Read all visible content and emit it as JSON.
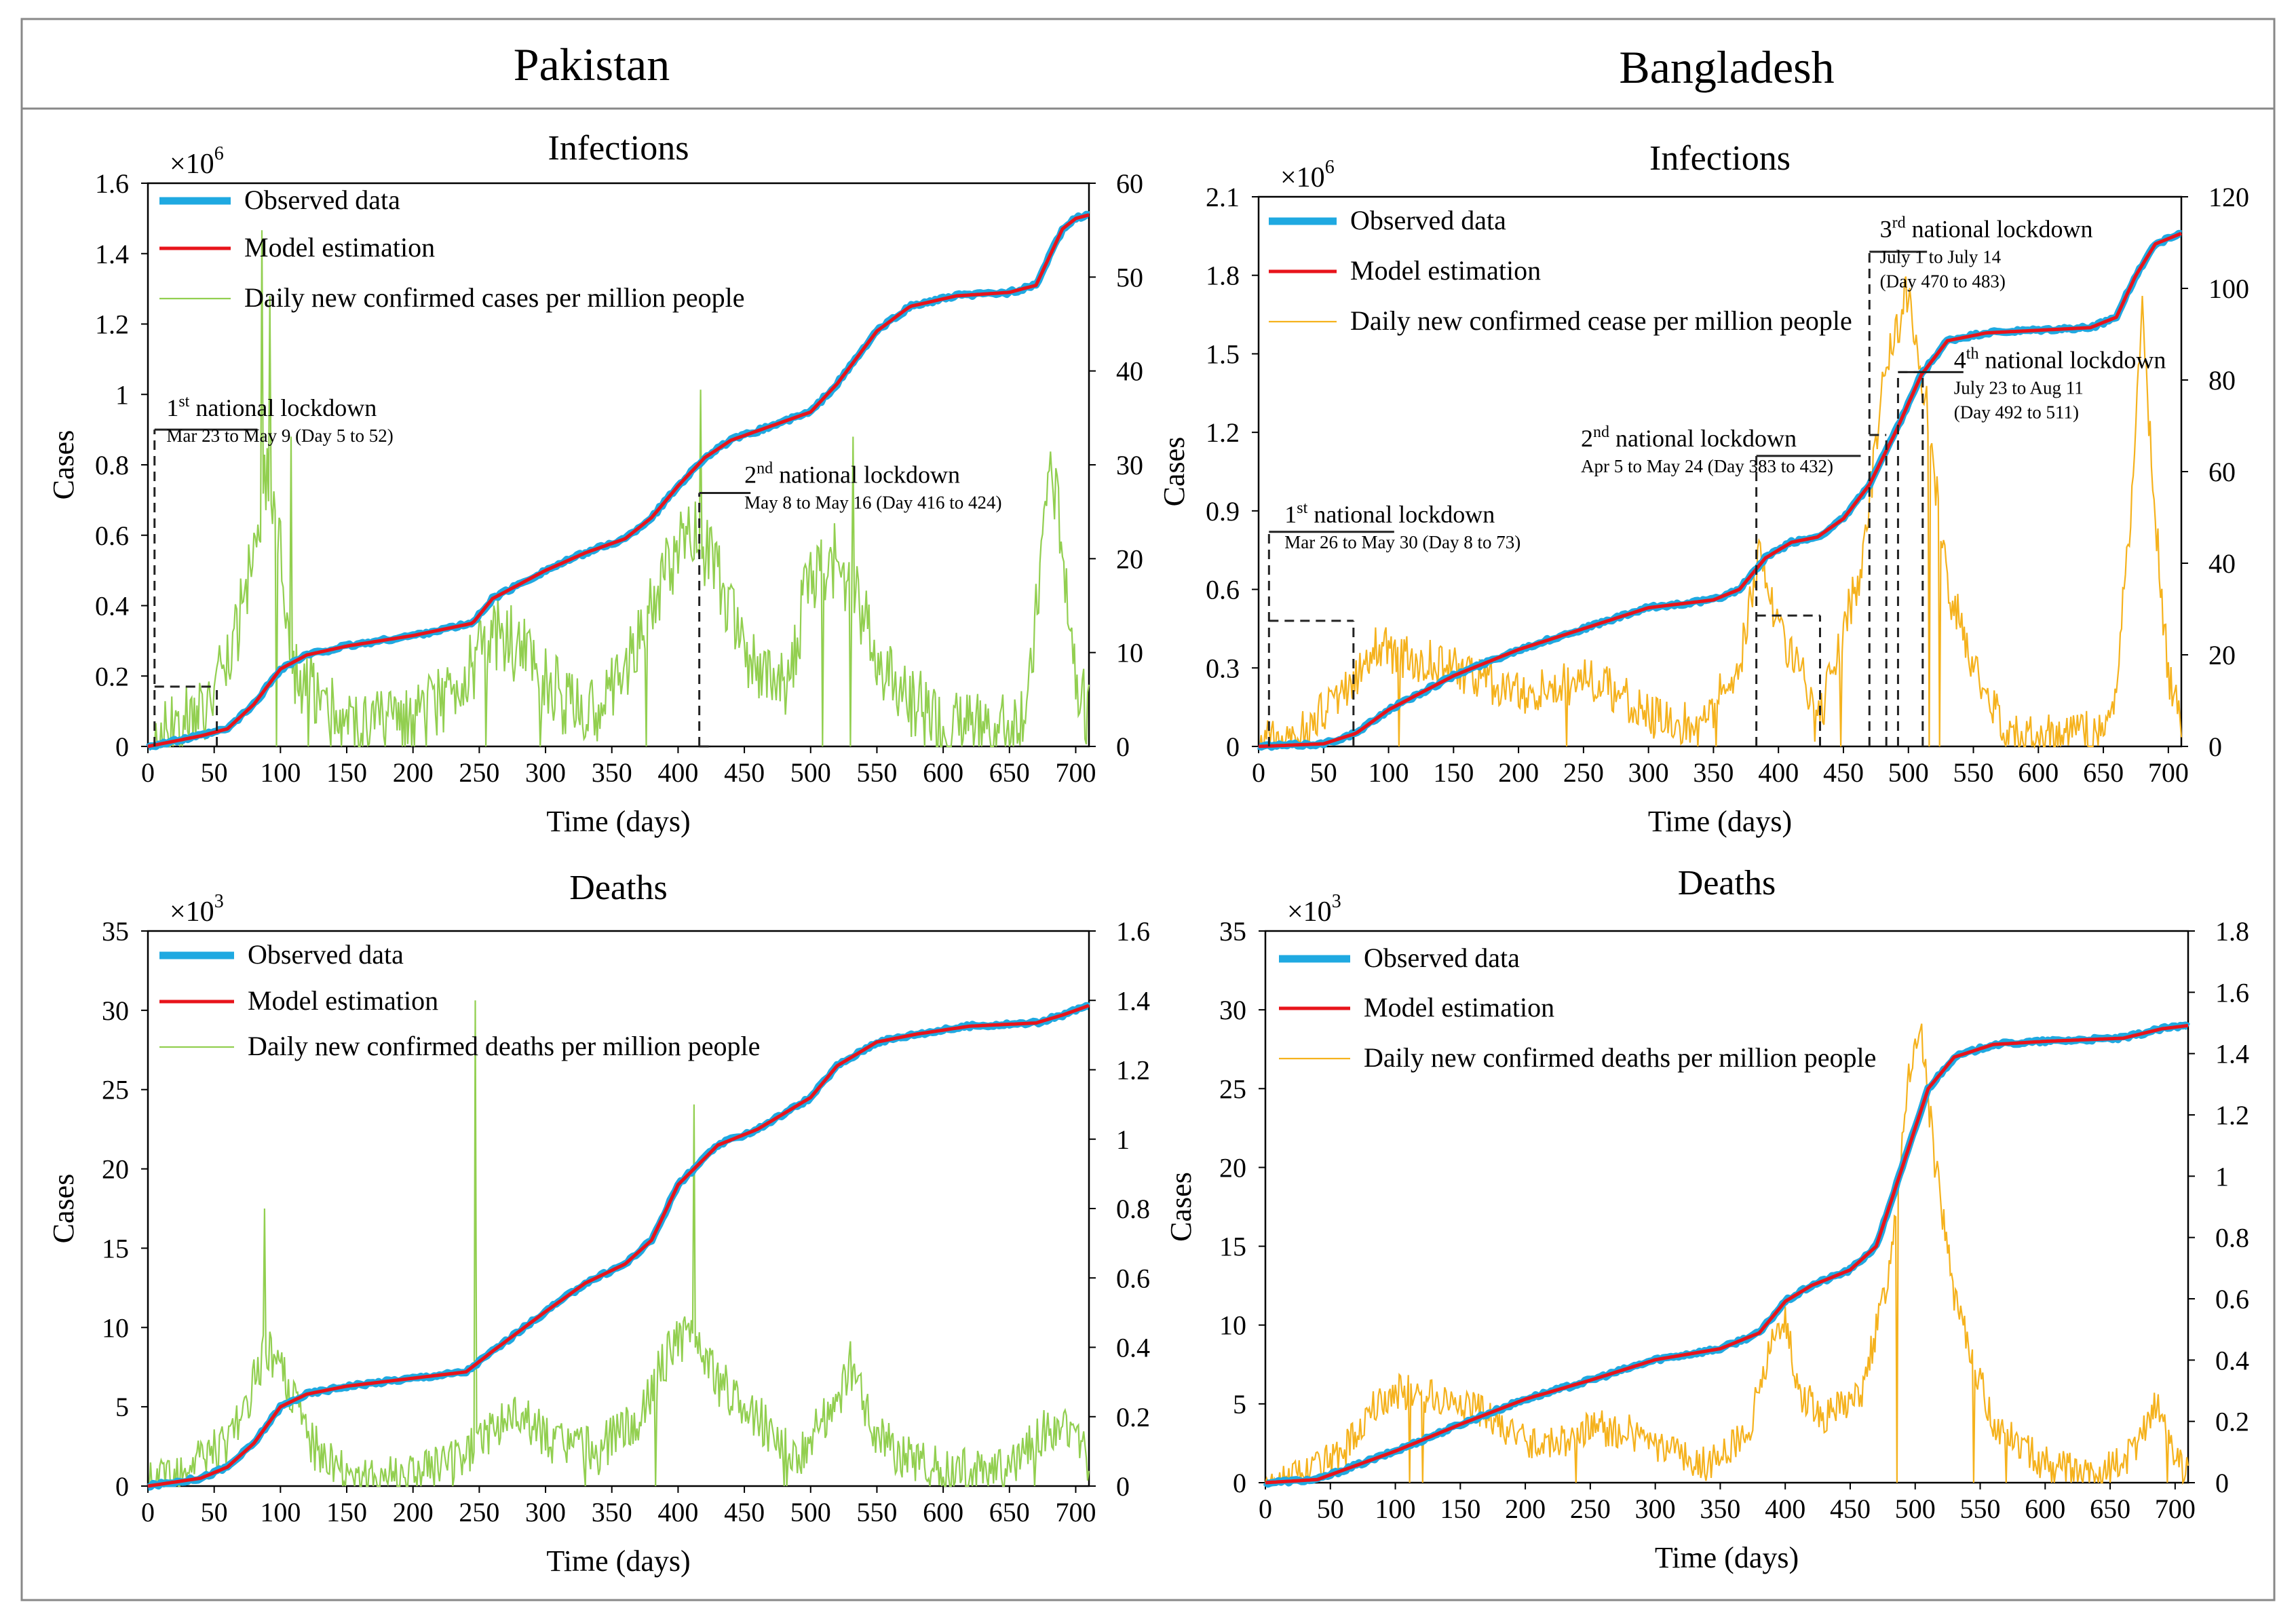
{
  "figure": {
    "country_left": "Pakistan",
    "country_right": "Bangladesh"
  },
  "colors": {
    "observed": "#1FA9E1",
    "model": "#E8141B",
    "pak_daily": "#92CF50",
    "ban_daily": "#F5B21D",
    "axis": "#000000",
    "frame": "#888888"
  },
  "chart_data": [
    {
      "id": "pak-inf",
      "type": "line",
      "title": "Infections",
      "xlabel": "Time (days)",
      "ylabel": "Cases",
      "multiplier": "×10",
      "multiplier_exp": "6",
      "xlim": [
        0,
        710
      ],
      "xticks": [
        0,
        50,
        100,
        150,
        200,
        250,
        300,
        350,
        400,
        450,
        500,
        550,
        600,
        650,
        700
      ],
      "ylim": [
        0,
        1.6
      ],
      "yticks": [
        "0",
        "0.2",
        "0.4",
        "0.6",
        "0.8",
        "1",
        "1.2",
        "1.4",
        "1.6"
      ],
      "y2lim": [
        0,
        60
      ],
      "y2ticks": [
        "0",
        "10",
        "20",
        "30",
        "40",
        "50",
        "60"
      ],
      "legend": [
        "Observed data",
        "Model estimation",
        "Daily new confirmed cases per million people"
      ],
      "daily_color": "pak_daily",
      "cumulative": [
        [
          0,
          0
        ],
        [
          40,
          0.03
        ],
        [
          60,
          0.05
        ],
        [
          80,
          0.12
        ],
        [
          100,
          0.22
        ],
        [
          120,
          0.26
        ],
        [
          150,
          0.285
        ],
        [
          200,
          0.315
        ],
        [
          245,
          0.35
        ],
        [
          260,
          0.42
        ],
        [
          300,
          0.5
        ],
        [
          330,
          0.55
        ],
        [
          360,
          0.59
        ],
        [
          380,
          0.65
        ],
        [
          400,
          0.74
        ],
        [
          420,
          0.82
        ],
        [
          440,
          0.87
        ],
        [
          470,
          0.91
        ],
        [
          500,
          0.95
        ],
        [
          520,
          1.03
        ],
        [
          550,
          1.18
        ],
        [
          575,
          1.25
        ],
        [
          610,
          1.28
        ],
        [
          650,
          1.29
        ],
        [
          670,
          1.31
        ],
        [
          690,
          1.47
        ],
        [
          700,
          1.5
        ],
        [
          710,
          1.51
        ]
      ],
      "daily_base": [
        [
          0,
          0
        ],
        [
          20,
          2
        ],
        [
          40,
          4
        ],
        [
          60,
          8
        ],
        [
          80,
          20
        ],
        [
          90,
          30
        ],
        [
          100,
          22
        ],
        [
          110,
          8
        ],
        [
          150,
          2
        ],
        [
          200,
          2
        ],
        [
          240,
          8
        ],
        [
          265,
          12
        ],
        [
          285,
          10
        ],
        [
          300,
          7
        ],
        [
          330,
          3
        ],
        [
          360,
          8
        ],
        [
          390,
          18
        ],
        [
          410,
          24
        ],
        [
          430,
          18
        ],
        [
          450,
          10
        ],
        [
          480,
          6
        ],
        [
          500,
          18
        ],
        [
          520,
          20
        ],
        [
          540,
          14
        ],
        [
          560,
          7
        ],
        [
          600,
          2
        ],
        [
          650,
          2
        ],
        [
          665,
          5
        ],
        [
          680,
          30
        ],
        [
          690,
          22
        ],
        [
          700,
          8
        ],
        [
          710,
          3
        ]
      ],
      "daily_noise": 4,
      "spikes": [
        [
          86,
          55,
          2
        ],
        [
          92,
          48,
          4
        ],
        [
          108,
          33,
          0
        ],
        [
          417,
          38,
          12
        ],
        [
          532,
          33,
          2
        ]
      ],
      "lockdowns": [
        {
          "label_pre": "1",
          "label_sup": "st",
          "label_post": " national lockdown",
          "sub": "Mar 23 to May 9 (Day 5 to 52)",
          "x1": 5,
          "x2": 52,
          "low": 0.17,
          "high": 0.9,
          "lx": 14,
          "ly": 0.92
        },
        {
          "label_pre": "2",
          "label_sup": "nd",
          "label_post": " national lockdown",
          "sub": "May 8 to May 16 (Day 416 to 424)",
          "x1": 416,
          "x2": 424,
          "low": 0.0,
          "high": 0.72,
          "lx": 450,
          "ly": 0.73
        }
      ]
    },
    {
      "id": "ban-inf",
      "type": "line",
      "title": "Infections",
      "xlabel": "Time (days)",
      "ylabel": "Cases",
      "multiplier": "×10",
      "multiplier_exp": "6",
      "xlim": [
        0,
        710
      ],
      "xticks": [
        0,
        50,
        100,
        150,
        200,
        250,
        300,
        350,
        400,
        450,
        500,
        550,
        600,
        650,
        700
      ],
      "ylim": [
        0,
        2.1
      ],
      "yticks": [
        "0",
        "0.3",
        "0.6",
        "0.9",
        "1.2",
        "1.5",
        "1.8",
        "2.1"
      ],
      "y2lim": [
        0,
        120
      ],
      "y2ticks": [
        "0",
        "20",
        "40",
        "60",
        "80",
        "100",
        "120"
      ],
      "legend": [
        "Observed data",
        "Model estimation",
        "Daily new confirmed cease per million people"
      ],
      "daily_color": "ban_daily",
      "cumulative": [
        [
          0,
          0
        ],
        [
          50,
          0.01
        ],
        [
          75,
          0.05
        ],
        [
          100,
          0.14
        ],
        [
          150,
          0.27
        ],
        [
          200,
          0.37
        ],
        [
          250,
          0.45
        ],
        [
          300,
          0.53
        ],
        [
          350,
          0.56
        ],
        [
          370,
          0.6
        ],
        [
          390,
          0.72
        ],
        [
          410,
          0.78
        ],
        [
          430,
          0.8
        ],
        [
          450,
          0.87
        ],
        [
          470,
          1.0
        ],
        [
          490,
          1.2
        ],
        [
          510,
          1.42
        ],
        [
          530,
          1.55
        ],
        [
          560,
          1.58
        ],
        [
          600,
          1.59
        ],
        [
          640,
          1.6
        ],
        [
          660,
          1.64
        ],
        [
          675,
          1.8
        ],
        [
          690,
          1.92
        ],
        [
          710,
          1.96
        ]
      ],
      "daily_base": [
        [
          0,
          0
        ],
        [
          40,
          4
        ],
        [
          70,
          14
        ],
        [
          90,
          22
        ],
        [
          110,
          20
        ],
        [
          150,
          17
        ],
        [
          200,
          11
        ],
        [
          230,
          13
        ],
        [
          250,
          15
        ],
        [
          270,
          13
        ],
        [
          300,
          7
        ],
        [
          340,
          4
        ],
        [
          370,
          18
        ],
        [
          385,
          42
        ],
        [
          400,
          26
        ],
        [
          420,
          14
        ],
        [
          430,
          4
        ],
        [
          450,
          26
        ],
        [
          465,
          40
        ],
        [
          480,
          80
        ],
        [
          500,
          100
        ],
        [
          515,
          72
        ],
        [
          530,
          35
        ],
        [
          560,
          10
        ],
        [
          580,
          3
        ],
        [
          600,
          2
        ],
        [
          650,
          3
        ],
        [
          660,
          12
        ],
        [
          672,
          55
        ],
        [
          680,
          95
        ],
        [
          690,
          50
        ],
        [
          700,
          15
        ],
        [
          710,
          5
        ]
      ],
      "daily_noise": 5,
      "spikes": [],
      "lockdowns": [
        {
          "label_pre": "1",
          "label_sup": "st",
          "label_post": " national lockdown",
          "sub": "Mar 26 to May 30 (Day 8 to 73)",
          "x1": 8,
          "x2": 73,
          "low": 0.48,
          "high": 0.82,
          "lx": 20,
          "ly": 0.83
        },
        {
          "label_pre": "2",
          "label_sup": "nd",
          "label_post": " national lockdown",
          "sub": "Apr 5 to May 24 (Day 383 to 432)",
          "x1": 383,
          "x2": 432,
          "low": 0.5,
          "high": 1.11,
          "lx": 248,
          "ly": 1.12
        },
        {
          "label_pre": "3",
          "label_sup": "rd",
          "label_post": " national lockdown",
          "sub": "July  1 to July  14",
          "sub2": "(Day 470 to 483)",
          "x1": 470,
          "x2": 483,
          "low": 1.19,
          "high": 1.89,
          "lx": 478,
          "ly": 1.92
        },
        {
          "label_pre": "4",
          "label_sup": "th",
          "label_post": " national lockdown",
          "sub": "July 23 to Aug 11",
          "sub2": "(Day 492 to 511)",
          "x1": 492,
          "x2": 511,
          "low": 1.43,
          "high": 1.43,
          "lx": 535,
          "ly": 1.42
        }
      ]
    },
    {
      "id": "pak-dea",
      "type": "line",
      "title": "Deaths",
      "xlabel": "Time (days)",
      "ylabel": "Cases",
      "multiplier": "×10",
      "multiplier_exp": "3",
      "xlim": [
        0,
        710
      ],
      "xticks": [
        0,
        50,
        100,
        150,
        200,
        250,
        300,
        350,
        400,
        450,
        500,
        550,
        600,
        650,
        700
      ],
      "ylim": [
        0,
        35
      ],
      "yticks": [
        "0",
        "5",
        "10",
        "15",
        "20",
        "25",
        "30",
        "35"
      ],
      "y2lim": [
        0,
        1.6
      ],
      "y2ticks": [
        "0",
        "0.2",
        "0.4",
        "0.6",
        "0.8",
        "1",
        "1.2",
        "1.4",
        "1.6"
      ],
      "legend": [
        "Observed data",
        "Model estimation",
        "Daily new confirmed deaths per million people"
      ],
      "daily_color": "pak_daily",
      "cumulative": [
        [
          0,
          0
        ],
        [
          40,
          0.5
        ],
        [
          60,
          1.2
        ],
        [
          80,
          2.7
        ],
        [
          100,
          5
        ],
        [
          120,
          5.8
        ],
        [
          150,
          6.3
        ],
        [
          200,
          6.8
        ],
        [
          240,
          7.2
        ],
        [
          260,
          8.5
        ],
        [
          300,
          11
        ],
        [
          330,
          12.8
        ],
        [
          360,
          14
        ],
        [
          380,
          15.5
        ],
        [
          400,
          19
        ],
        [
          430,
          21.5
        ],
        [
          460,
          22.5
        ],
        [
          500,
          24.5
        ],
        [
          520,
          26.5
        ],
        [
          550,
          28
        ],
        [
          580,
          28.5
        ],
        [
          620,
          29
        ],
        [
          670,
          29.2
        ],
        [
          690,
          29.7
        ],
        [
          710,
          30.3
        ]
      ],
      "daily_base": [
        [
          0,
          0
        ],
        [
          30,
          0.05
        ],
        [
          60,
          0.12
        ],
        [
          80,
          0.3
        ],
        [
          90,
          0.4
        ],
        [
          100,
          0.33
        ],
        [
          115,
          0.2
        ],
        [
          130,
          0.08
        ],
        [
          160,
          0.02
        ],
        [
          200,
          0.03
        ],
        [
          240,
          0.08
        ],
        [
          260,
          0.17
        ],
        [
          280,
          0.2
        ],
        [
          310,
          0.12
        ],
        [
          340,
          0.1
        ],
        [
          370,
          0.2
        ],
        [
          395,
          0.4
        ],
        [
          410,
          0.45
        ],
        [
          430,
          0.3
        ],
        [
          460,
          0.2
        ],
        [
          490,
          0.08
        ],
        [
          520,
          0.25
        ],
        [
          530,
          0.35
        ],
        [
          545,
          0.18
        ],
        [
          570,
          0.08
        ],
        [
          600,
          0.04
        ],
        [
          650,
          0.04
        ],
        [
          680,
          0.18
        ],
        [
          700,
          0.15
        ],
        [
          710,
          0.05
        ]
      ],
      "daily_noise": 0.07,
      "spikes": [
        [
          247,
          1.4,
          0.05
        ],
        [
          412,
          1.1,
          0.2
        ],
        [
          88,
          0.8,
          0.3
        ]
      ],
      "lockdowns": []
    },
    {
      "id": "ban-dea",
      "type": "line",
      "title": "Deaths",
      "xlabel": "Time (days)",
      "ylabel": "Cases",
      "multiplier": "×10",
      "multiplier_exp": "3",
      "xlim": [
        0,
        710
      ],
      "xticks": [
        0,
        50,
        100,
        150,
        200,
        250,
        300,
        350,
        400,
        450,
        500,
        550,
        600,
        650,
        700
      ],
      "ylim": [
        0,
        35
      ],
      "yticks": [
        "0",
        "5",
        "10",
        "15",
        "20",
        "25",
        "30",
        "35"
      ],
      "y2lim": [
        0,
        1.8
      ],
      "y2ticks": [
        "0",
        "0.2",
        "0.4",
        "0.6",
        "0.8",
        "1",
        "1.2",
        "1.4",
        "1.6",
        "1.8"
      ],
      "legend": [
        "Observed data",
        "Model estimation",
        "Daily new confirmed deaths per million people"
      ],
      "daily_color": "ban_daily",
      "cumulative": [
        [
          0,
          0
        ],
        [
          40,
          0.2
        ],
        [
          60,
          0.8
        ],
        [
          100,
          2
        ],
        [
          150,
          3.7
        ],
        [
          200,
          5.3
        ],
        [
          250,
          6.5
        ],
        [
          300,
          7.8
        ],
        [
          350,
          8.5
        ],
        [
          380,
          9.5
        ],
        [
          400,
          11.5
        ],
        [
          420,
          12.5
        ],
        [
          450,
          13.5
        ],
        [
          470,
          15
        ],
        [
          490,
          20
        ],
        [
          510,
          25
        ],
        [
          530,
          27
        ],
        [
          560,
          27.8
        ],
        [
          600,
          28
        ],
        [
          660,
          28.2
        ],
        [
          690,
          28.8
        ],
        [
          710,
          29
        ]
      ],
      "daily_base": [
        [
          0,
          0
        ],
        [
          30,
          0.02
        ],
        [
          60,
          0.1
        ],
        [
          80,
          0.24
        ],
        [
          100,
          0.3
        ],
        [
          130,
          0.28
        ],
        [
          160,
          0.26
        ],
        [
          190,
          0.15
        ],
        [
          220,
          0.12
        ],
        [
          250,
          0.18
        ],
        [
          280,
          0.17
        ],
        [
          310,
          0.1
        ],
        [
          340,
          0.06
        ],
        [
          370,
          0.15
        ],
        [
          390,
          0.45
        ],
        [
          400,
          0.55
        ],
        [
          410,
          0.3
        ],
        [
          430,
          0.22
        ],
        [
          460,
          0.3
        ],
        [
          480,
          0.7
        ],
        [
          495,
          1.35
        ],
        [
          505,
          1.45
        ],
        [
          515,
          1.05
        ],
        [
          530,
          0.6
        ],
        [
          560,
          0.2
        ],
        [
          600,
          0.06
        ],
        [
          640,
          0.02
        ],
        [
          670,
          0.1
        ],
        [
          685,
          0.25
        ],
        [
          700,
          0.1
        ],
        [
          710,
          0.03
        ]
      ],
      "daily_noise": 0.06,
      "spikes": [],
      "lockdowns": []
    }
  ]
}
